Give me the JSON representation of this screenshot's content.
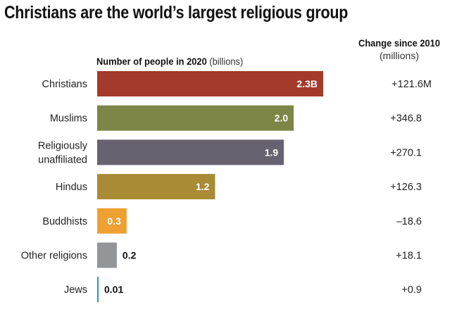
{
  "chart_data": {
    "type": "bar",
    "orientation": "horizontal",
    "title": "Christians are the world’s largest religious group",
    "subtitle_bold": "Number of people in 2020",
    "subtitle_unit": "(billions)",
    "change_header": "Change since 2010",
    "change_unit": "(millions)",
    "categories": [
      "Christians",
      "Muslims",
      "Religiously unaffiliated",
      "Hindus",
      "Buddhists",
      "Other religions",
      "Jews"
    ],
    "category_lines": [
      [
        "Christians"
      ],
      [
        "Muslims"
      ],
      [
        "Religiously",
        "unaffiliated"
      ],
      [
        "Hindus"
      ],
      [
        "Buddhists"
      ],
      [
        "Other religions"
      ],
      [
        "Jews"
      ]
    ],
    "values": [
      2.3,
      2.0,
      1.9,
      1.2,
      0.3,
      0.2,
      0.01
    ],
    "value_labels": [
      "2.3B",
      "2.0",
      "1.9",
      "1.2",
      "0.3",
      "0.2",
      "0.01"
    ],
    "label_inside": [
      true,
      true,
      true,
      true,
      true,
      false,
      false
    ],
    "colors": [
      "#a33a2b",
      "#7d8647",
      "#67626f",
      "#a98a35",
      "#eea032",
      "#949599",
      "#2a92c2"
    ],
    "change_values": [
      121.6,
      346.8,
      270.1,
      126.3,
      -18.6,
      18.1,
      0.9
    ],
    "change_labels": [
      "+121.6M",
      "+346.8",
      "+270.1",
      "+126.3",
      "–18.6",
      "+18.1",
      "+0.9"
    ],
    "xlim": [
      0,
      2.3
    ],
    "grid": false,
    "legend": "none"
  }
}
